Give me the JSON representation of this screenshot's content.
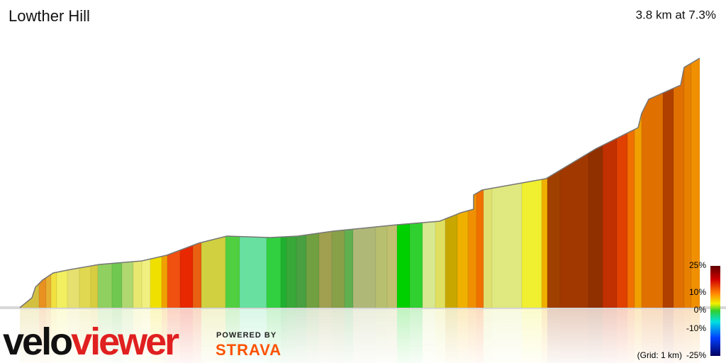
{
  "header": {
    "title": "Lowther Hill",
    "summary": "3.8 km at 7.3%"
  },
  "legend": {
    "labels": [
      "25%",
      "10%",
      "0%",
      "-10%",
      "-25%"
    ],
    "grid_note": "(Grid: 1 km)"
  },
  "branding": {
    "logo_prefix": "velo",
    "logo_suffix": "viewer",
    "powered_by": "POWERED BY",
    "partner": "STRAVA"
  }
}
